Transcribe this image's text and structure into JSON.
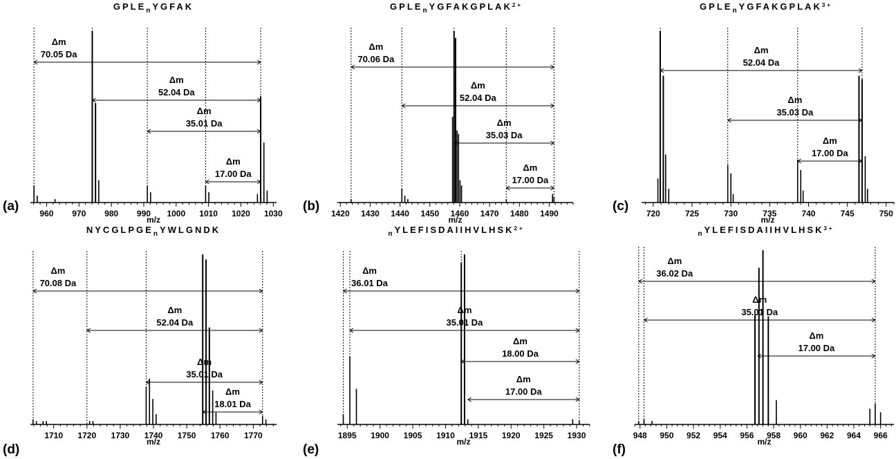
{
  "chart_data": [
    {
      "panel": "(a)",
      "title_parts": [
        "GPLE",
        "n",
        "YGFAK",
        ""
      ],
      "xlabel": "m/z",
      "type": "bar",
      "xlim": [
        955,
        1031
      ],
      "xticks": [
        960,
        970,
        980,
        990,
        1000,
        1010,
        1020,
        1030
      ],
      "peaks": [
        [
          956.1,
          0.1
        ],
        [
          957.1,
          0.04
        ],
        [
          962.6,
          0.02
        ],
        [
          974.1,
          1.0
        ],
        [
          975.1,
          0.58
        ],
        [
          976.1,
          0.13
        ],
        [
          991.1,
          0.1
        ],
        [
          992.1,
          0.06
        ],
        [
          1009.1,
          0.1
        ],
        [
          1010.1,
          0.06
        ],
        [
          1025.1,
          0.05
        ],
        [
          1026.1,
          0.62
        ],
        [
          1027.1,
          0.35
        ],
        [
          1028.1,
          0.07
        ]
      ],
      "dashed_lines": [
        956.1,
        974.1,
        991.1,
        1009.1,
        1026.1
      ],
      "annotations": [
        {
          "from": 956.1,
          "to": 1026.1,
          "label": "70.05 Da",
          "row": 0
        },
        {
          "from": 974.1,
          "to": 1026.1,
          "label": "52.04 Da",
          "row": 1
        },
        {
          "from": 991.1,
          "to": 1026.1,
          "label": "35.01 Da",
          "row": 2
        },
        {
          "from": 1009.1,
          "to": 1026.1,
          "label": "17.00 Da",
          "row": 3
        }
      ]
    },
    {
      "panel": "(b)",
      "title_parts": [
        "GPLE",
        "n",
        "YGFAKGPLAK",
        "2+"
      ],
      "xlabel": "m/z",
      "type": "bar",
      "xlim": [
        1419,
        1498
      ],
      "xticks": [
        1420,
        1430,
        1440,
        1450,
        1460,
        1470,
        1480,
        1490
      ],
      "peaks": [
        [
          1423.6,
          0.02
        ],
        [
          1440.6,
          0.08
        ],
        [
          1441.6,
          0.04
        ],
        [
          1442.6,
          0.02
        ],
        [
          1457.6,
          0.5
        ],
        [
          1458.1,
          1.0
        ],
        [
          1458.6,
          0.96
        ],
        [
          1459.1,
          0.42
        ],
        [
          1459.6,
          0.4
        ],
        [
          1460.1,
          0.13
        ],
        [
          1460.6,
          0.1
        ],
        [
          1475.6,
          0.02
        ],
        [
          1491.1,
          0.05
        ],
        [
          1491.6,
          0.03
        ]
      ],
      "dashed_lines": [
        1423.6,
        1440.6,
        1458.1,
        1475.6,
        1491.6
      ],
      "annotations": [
        {
          "from": 1423.6,
          "to": 1491.6,
          "label": "70.06 Da",
          "row": 0
        },
        {
          "from": 1440.6,
          "to": 1491.6,
          "label": "52.04 Da",
          "row": 1
        },
        {
          "from": 1458.1,
          "to": 1491.6,
          "label": "35.03 Da",
          "row": 2
        },
        {
          "from": 1475.6,
          "to": 1491.6,
          "label": "17.00 Da",
          "row": 3
        }
      ]
    },
    {
      "panel": "(c)",
      "title_parts": [
        "GPLE",
        "n",
        "YGFAKGPLAK",
        "3+"
      ],
      "xlabel": "m/z",
      "type": "bar",
      "xlim": [
        718.5,
        751
      ],
      "xticks": [
        720,
        725,
        730,
        735,
        740,
        745,
        750
      ],
      "peaks": [
        [
          720.6,
          0.14
        ],
        [
          720.9,
          1.0
        ],
        [
          721.3,
          0.74
        ],
        [
          721.6,
          0.28
        ],
        [
          722.0,
          0.08
        ],
        [
          729.6,
          0.22
        ],
        [
          730.0,
          0.17
        ],
        [
          730.3,
          0.05
        ],
        [
          738.6,
          0.25
        ],
        [
          739.0,
          0.19
        ],
        [
          739.3,
          0.07
        ],
        [
          746.5,
          0.74
        ],
        [
          746.9,
          0.72
        ],
        [
          747.3,
          0.27
        ],
        [
          747.6,
          0.08
        ]
      ],
      "dashed_lines": [
        720.9,
        729.6,
        738.6,
        746.9
      ],
      "annotations": [
        {
          "from": 720.9,
          "to": 746.9,
          "label": "52.04 Da",
          "row": 0
        },
        {
          "from": 729.6,
          "to": 746.9,
          "label": "35.03 Da",
          "row": 1
        },
        {
          "from": 738.6,
          "to": 746.9,
          "label": "17.00 Da",
          "row": 2
        }
      ]
    },
    {
      "panel": "(d)",
      "title_parts": [
        "NYCGLPGE",
        "n",
        "YWLGNDK",
        ""
      ],
      "xlabel": "m/z",
      "type": "bar",
      "xlim": [
        1703,
        1777
      ],
      "xticks": [
        1710,
        1720,
        1730,
        1740,
        1750,
        1760,
        1770
      ],
      "peaks": [
        [
          1703.8,
          0.03
        ],
        [
          1704.8,
          0.02
        ],
        [
          1706.8,
          0.02
        ],
        [
          1707.8,
          0.02
        ],
        [
          1720.8,
          0.02
        ],
        [
          1721.8,
          0.02
        ],
        [
          1737.8,
          0.22
        ],
        [
          1738.8,
          0.27
        ],
        [
          1739.8,
          0.15
        ],
        [
          1740.8,
          0.06
        ],
        [
          1754.8,
          1.0
        ],
        [
          1755.8,
          0.97
        ],
        [
          1756.8,
          0.57
        ],
        [
          1757.8,
          0.2
        ],
        [
          1758.8,
          0.07
        ],
        [
          1772.8,
          0.05
        ],
        [
          1773.8,
          0.03
        ]
      ],
      "dashed_lines": [
        1703.8,
        1720.0,
        1737.8,
        1772.8
      ],
      "annotations": [
        {
          "from": 1703.8,
          "to": 1772.8,
          "label": "70.08 Da",
          "row": 0
        },
        {
          "from": 1720.0,
          "to": 1772.8,
          "label": "52.04 Da",
          "row": 1
        },
        {
          "from": 1737.8,
          "to": 1772.8,
          "label": "35.01 Da",
          "row": 2
        },
        {
          "from": 1754.8,
          "to": 1772.8,
          "label": "18.01 Da",
          "row": 3
        }
      ]
    },
    {
      "panel": "(e)",
      "title_parts": [
        "",
        "n",
        "YLEFISDAIIHVLHSK",
        "2+"
      ],
      "xlabel": "m/z",
      "type": "bar",
      "xlim": [
        1893.5,
        1932
      ],
      "xticks": [
        1895,
        1900,
        1905,
        1910,
        1915,
        1920,
        1925,
        1930
      ],
      "peaks": [
        [
          1894.4,
          0.06
        ],
        [
          1895.4,
          0.4
        ],
        [
          1896.4,
          0.21
        ],
        [
          1912.4,
          0.95
        ],
        [
          1912.9,
          1.0
        ],
        [
          1913.4,
          0.03
        ],
        [
          1929.4,
          0.03
        ],
        [
          1930.4,
          0.02
        ]
      ],
      "dashed_lines": [
        1894.4,
        1895.4,
        1912.4,
        1930.4
      ],
      "annotations": [
        {
          "from": 1894.4,
          "to": 1930.4,
          "label": "36.01 Da",
          "row": 0
        },
        {
          "from": 1895.4,
          "to": 1930.4,
          "label": "35.01 Da",
          "row": 1
        },
        {
          "from": 1912.4,
          "to": 1930.4,
          "label": "18.00 Da",
          "row": 2
        },
        {
          "from": 1913.4,
          "to": 1930.4,
          "label": "17.00 Da",
          "row": 3
        }
      ]
    },
    {
      "panel": "(f)",
      "title_parts": [
        "",
        "n",
        "YLEFISDAIIHVLHSK",
        "3+"
      ],
      "xlabel": "m/z",
      "type": "bar",
      "xlim": [
        947.6,
        967
      ],
      "xticks": [
        948,
        950,
        952,
        954,
        956,
        958,
        960,
        962,
        964,
        966
      ],
      "peaks": [
        [
          947.9,
          0.02
        ],
        [
          948.3,
          0.03
        ],
        [
          948.9,
          0.02
        ],
        [
          956.6,
          0.63
        ],
        [
          956.9,
          0.9
        ],
        [
          957.2,
          1.0
        ],
        [
          957.6,
          0.62
        ],
        [
          958.2,
          0.14
        ],
        [
          965.2,
          0.09
        ],
        [
          965.6,
          0.12
        ],
        [
          966.0,
          0.07
        ]
      ],
      "dashed_lines": [
        947.9,
        948.3,
        965.6
      ],
      "annotations": [
        {
          "from": 947.9,
          "to": 965.6,
          "label": "36.02 Da",
          "row": 0
        },
        {
          "from": 948.3,
          "to": 965.6,
          "label": "35.01 Da",
          "row": 1
        },
        {
          "from": 956.8,
          "to": 965.6,
          "label": "17.00 Da",
          "row": 2
        }
      ]
    }
  ],
  "delta_symbol": "Δm"
}
